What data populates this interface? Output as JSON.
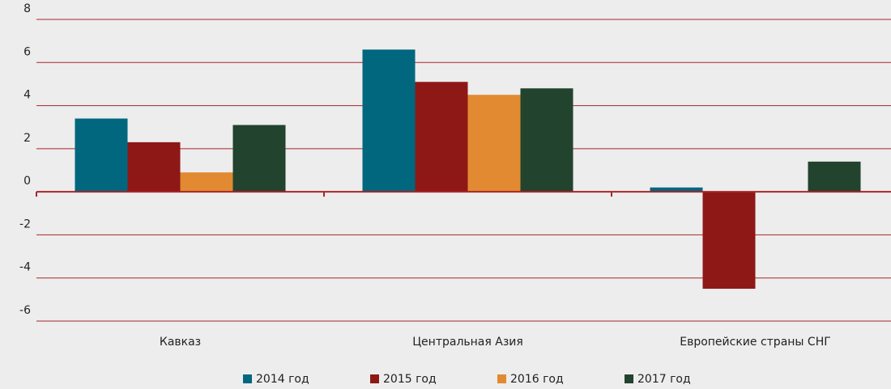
{
  "chart_data": {
    "type": "bar",
    "categories": [
      "Кавказ",
      "Центральная Азия",
      "Европейские страны СНГ"
    ],
    "series": [
      {
        "name": "2014 год",
        "color": "#00677f",
        "values": [
          3.4,
          6.6,
          0.2
        ]
      },
      {
        "name": "2015 год",
        "color": "#8e1816",
        "values": [
          2.3,
          5.1,
          -4.5
        ]
      },
      {
        "name": "2016 год",
        "color": "#e28a32",
        "values": [
          0.9,
          4.5,
          null
        ]
      },
      {
        "name": "2017 год",
        "color": "#22432e",
        "values": [
          3.1,
          4.8,
          1.4
        ]
      }
    ],
    "ylim": [
      -6,
      8
    ],
    "yticks": [
      -6,
      -4,
      -2,
      0,
      2,
      4,
      6,
      8
    ],
    "grid": true,
    "legend": "bottom"
  }
}
